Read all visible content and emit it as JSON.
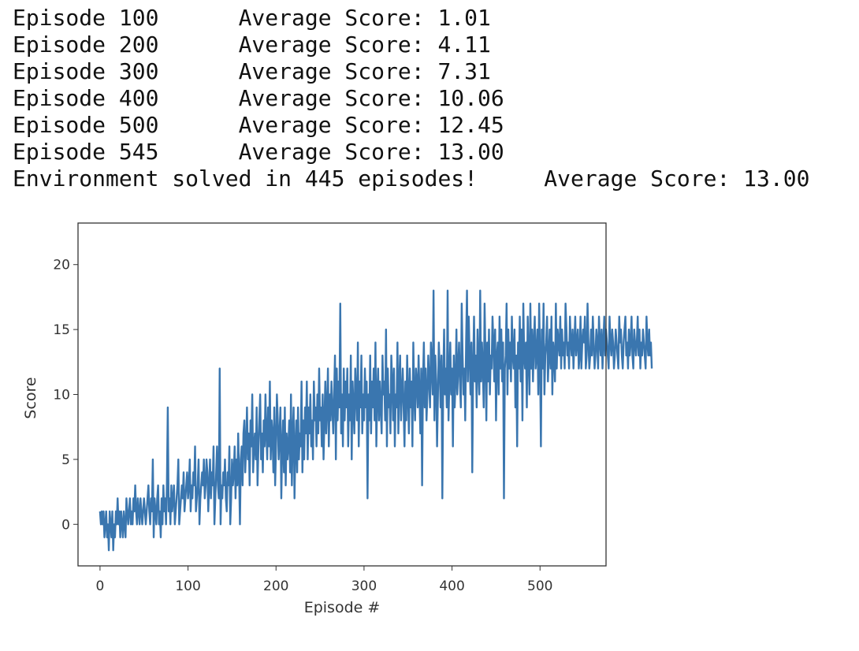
{
  "console_lines": [
    "Episode 100      Average Score: 1.01",
    "Episode 200      Average Score: 4.11",
    "Episode 300      Average Score: 7.31",
    "Episode 400      Average Score: 10.06",
    "Episode 500      Average Score: 12.45",
    "Episode 545      Average Score: 13.00",
    "Environment solved in 445 episodes!     Average Score: 13.00"
  ],
  "colors": {
    "line": "#3a76af",
    "frame": "#333333"
  },
  "chart_data": {
    "type": "line",
    "xlabel": "Episode #",
    "ylabel": "Score",
    "xlim": [
      -25,
      575
    ],
    "ylim": [
      -3.2,
      23.2
    ],
    "xticks": [
      0,
      100,
      200,
      300,
      400,
      500
    ],
    "yticks": [
      0,
      5,
      10,
      15,
      20
    ],
    "grid": false,
    "series": [
      {
        "x_start": 0,
        "y": [
          1,
          0,
          1,
          0,
          1,
          -1,
          0,
          1,
          -1,
          0,
          -2,
          1,
          0,
          -1,
          1,
          -2,
          0,
          -1,
          1,
          0,
          2,
          0,
          1,
          -1,
          1,
          0,
          -1,
          1,
          0,
          -1,
          2,
          1,
          0,
          1,
          2,
          0,
          1,
          0,
          2,
          1,
          3,
          1,
          0,
          2,
          1,
          0,
          2,
          1,
          0,
          1,
          2,
          1,
          0,
          1,
          2,
          3,
          1,
          0,
          2,
          1,
          5,
          -1,
          2,
          1,
          0,
          2,
          3,
          0,
          1,
          -1,
          2,
          0,
          3,
          1,
          2,
          0,
          3,
          9,
          1,
          2,
          0,
          3,
          1,
          2,
          3,
          0,
          1,
          2,
          3,
          5,
          0,
          1,
          2,
          3,
          2,
          4,
          1,
          2,
          3,
          4,
          2,
          3,
          5,
          1,
          3,
          2,
          4,
          3,
          6,
          1,
          2,
          3,
          5,
          0,
          2,
          3,
          4,
          3,
          5,
          2,
          3,
          5,
          4,
          1,
          3,
          5,
          2,
          4,
          3,
          6,
          0,
          2,
          4,
          6,
          3,
          2,
          12,
          0,
          3,
          2,
          4,
          3,
          5,
          2,
          1,
          4,
          3,
          6,
          0,
          2,
          5,
          3,
          4,
          6,
          2,
          5,
          3,
          7,
          4,
          0,
          5,
          6,
          3,
          7,
          8,
          4,
          6,
          9,
          5,
          7,
          3,
          8,
          6,
          10,
          4,
          6,
          7,
          5,
          9,
          3,
          6,
          8,
          10,
          5,
          7,
          4,
          8,
          6,
          10,
          7,
          5,
          9,
          6,
          11,
          5,
          8,
          7,
          4,
          9,
          3,
          6,
          10,
          8,
          5,
          7,
          9,
          2,
          6,
          8,
          4,
          9,
          3,
          7,
          5,
          6,
          8,
          4,
          10,
          3,
          7,
          9,
          2,
          6,
          8,
          4,
          9,
          5,
          7,
          6,
          11,
          4,
          8,
          5,
          9,
          7,
          11,
          5,
          9,
          7,
          10,
          6,
          8,
          5,
          11,
          8,
          9,
          6,
          10,
          7,
          12,
          8,
          9,
          6,
          10,
          5,
          8,
          11,
          7,
          9,
          12,
          6,
          10,
          8,
          11,
          9,
          7,
          10,
          13,
          5,
          12,
          8,
          11,
          9,
          17,
          7,
          10,
          6,
          12,
          8,
          11,
          9,
          12,
          6,
          10,
          8,
          13,
          5,
          11,
          9,
          7,
          12,
          10,
          8,
          14,
          6,
          11,
          9,
          13,
          7,
          10,
          8,
          12,
          9,
          11,
          2,
          10,
          8,
          13,
          7,
          11,
          9,
          12,
          8,
          14,
          6,
          10,
          12,
          8,
          11,
          9,
          7,
          13,
          10,
          11,
          8,
          15,
          6,
          12,
          9,
          10,
          7,
          13,
          11,
          8,
          12,
          6,
          10,
          9,
          14,
          7,
          11,
          13,
          8,
          10,
          12,
          9,
          6,
          11,
          8,
          13,
          10,
          7,
          12,
          9,
          11,
          6,
          14,
          10,
          8,
          12,
          11,
          9,
          13,
          10,
          7,
          12,
          3,
          11,
          14,
          9,
          12,
          8,
          10,
          13,
          11,
          9,
          14,
          12,
          10,
          18,
          8,
          13,
          11,
          6,
          10,
          14,
          12,
          9,
          13,
          2,
          11,
          15,
          10,
          12,
          9,
          18,
          8,
          11,
          14,
          10,
          12,
          6,
          13,
          9,
          11,
          15,
          10,
          12,
          14,
          11,
          9,
          17,
          13,
          10,
          12,
          8,
          14,
          18,
          11,
          16,
          13,
          10,
          14,
          4,
          12,
          16,
          11,
          13,
          9,
          15,
          12,
          10,
          18,
          11,
          14,
          12,
          9,
          17,
          13,
          8,
          14,
          11,
          15,
          10,
          13,
          12,
          16,
          14,
          11,
          15,
          8,
          13,
          14,
          10,
          16,
          12,
          15,
          11,
          14,
          2,
          12,
          13,
          17,
          10,
          15,
          12,
          14,
          11,
          16,
          13,
          12,
          15,
          9,
          13,
          6,
          14,
          12,
          16,
          11,
          15,
          8,
          17,
          13,
          12,
          14,
          9,
          16,
          13,
          10,
          17,
          12,
          15,
          11,
          14,
          16,
          12,
          13,
          15,
          10,
          17,
          13,
          6,
          15,
          12,
          17,
          10,
          13,
          14,
          16,
          11,
          13,
          15,
          12,
          16,
          10,
          14,
          13,
          11,
          17,
          12,
          15,
          14,
          13,
          16,
          12,
          15,
          13,
          14,
          12,
          17,
          15,
          13,
          14,
          12,
          16,
          14,
          13,
          15,
          12,
          14,
          16,
          13,
          14,
          15,
          12,
          13,
          16,
          12,
          14,
          15,
          14,
          16,
          12,
          13,
          17,
          14,
          12,
          13,
          15,
          13,
          16,
          14,
          12,
          13,
          15,
          14,
          12,
          16,
          14,
          13,
          15,
          12,
          14,
          16,
          13,
          15,
          14,
          13,
          12,
          16,
          14,
          13,
          15,
          14,
          12,
          13,
          15,
          14,
          13,
          12,
          16,
          14,
          15,
          13,
          12,
          14,
          15,
          16,
          13,
          14,
          12,
          15,
          13,
          14,
          16,
          13,
          12,
          15,
          14,
          13,
          14,
          16,
          13,
          15,
          12,
          14,
          13,
          15,
          14,
          13,
          12,
          16,
          14,
          13,
          15,
          13,
          14,
          12
        ]
      }
    ]
  }
}
